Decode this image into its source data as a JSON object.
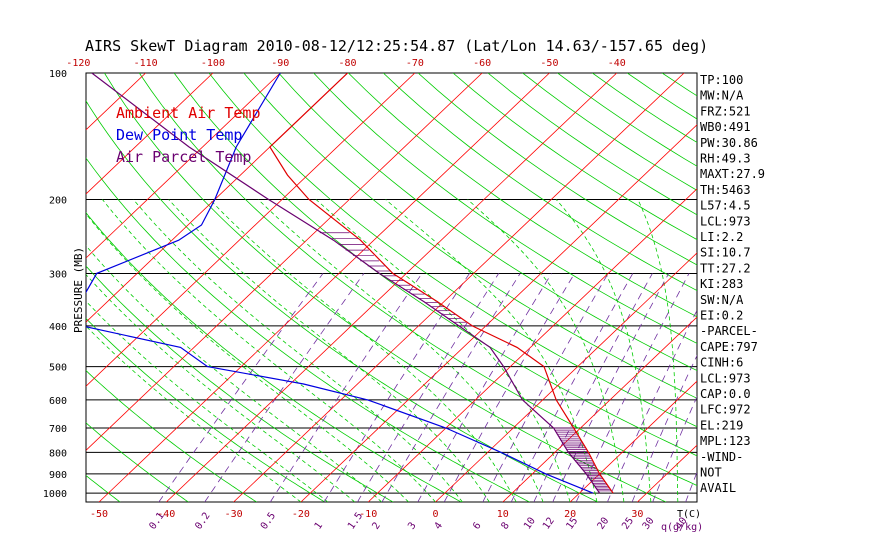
{
  "title": "AIRS SkewT Diagram 2010-08-12/12:25:54.87 (Lat/Lon 14.63/-157.65 deg)",
  "chart_data": {
    "type": "skewt",
    "ylabel": "PRESSURE (MB)",
    "ylim": [
      1050,
      100
    ],
    "y_log": true,
    "pressure_ticks": [
      100,
      200,
      300,
      400,
      500,
      600,
      700,
      800,
      900,
      1000
    ],
    "isobars": [
      200,
      300,
      400,
      500,
      600,
      700,
      800,
      900,
      1000
    ],
    "temp_ticks_bottom": [
      -50,
      -40,
      -30,
      -20,
      -10,
      0,
      10,
      20,
      30
    ],
    "temp_ticks_top": [
      -120,
      -110,
      -100,
      -90,
      -80,
      -70,
      -60,
      -50,
      -40
    ],
    "temp_unit_label": "T(C)",
    "mixing_ratio_ticks": [
      "0.1",
      "0.2",
      "0.5",
      "1",
      "1.5",
      "2",
      "3",
      "4",
      "6",
      "8",
      "10",
      "12",
      "15",
      "20",
      "25",
      "30",
      "40"
    ],
    "mixing_ratio_unit_label": "q(g/kg)",
    "series": [
      {
        "name": "Ambient Air Temp",
        "color": "#ff0000",
        "points": [
          [
            100,
            -80
          ],
          [
            150,
            -80
          ],
          [
            175,
            -73
          ],
          [
            200,
            -66
          ],
          [
            250,
            -52
          ],
          [
            300,
            -42
          ],
          [
            350,
            -31
          ],
          [
            400,
            -22
          ],
          [
            450,
            -12
          ],
          [
            500,
            -5
          ],
          [
            600,
            2
          ],
          [
            700,
            9
          ],
          [
            800,
            15
          ],
          [
            900,
            20
          ],
          [
            1000,
            25
          ]
        ]
      },
      {
        "name": "Dew Point Temp",
        "color": "#0000ff",
        "points": [
          [
            100,
            -90
          ],
          [
            150,
            -85
          ],
          [
            200,
            -80
          ],
          [
            230,
            -78
          ],
          [
            250,
            -79
          ],
          [
            300,
            -86
          ],
          [
            350,
            -84
          ],
          [
            400,
            -80
          ],
          [
            450,
            -62
          ],
          [
            500,
            -55
          ],
          [
            550,
            -38
          ],
          [
            600,
            -26
          ],
          [
            700,
            -10
          ],
          [
            800,
            2
          ],
          [
            900,
            12
          ],
          [
            1000,
            22
          ]
        ]
      },
      {
        "name": "Air Parcel Temp",
        "color": "#800080",
        "points": [
          [
            100,
            -118
          ],
          [
            150,
            -92
          ],
          [
            200,
            -72
          ],
          [
            250,
            -56
          ],
          [
            300,
            -44
          ],
          [
            350,
            -33
          ],
          [
            400,
            -24
          ],
          [
            450,
            -16
          ],
          [
            500,
            -11
          ],
          [
            600,
            -3
          ],
          [
            700,
            6
          ],
          [
            800,
            12
          ],
          [
            900,
            18
          ],
          [
            1000,
            23
          ]
        ]
      }
    ]
  },
  "legend": {
    "ambient": "Ambient Air Temp",
    "dewpoint": "Dew Point Temp",
    "parcel": "Air Parcel Temp"
  },
  "colors": {
    "ambient": "#e00000",
    "dewpoint": "#0000e0",
    "parcel": "#6a0070",
    "isotherm": "#ff0000",
    "dry_adiabat": "#00cc00",
    "moist_adiabat": "#00cc00",
    "mixing_ratio": "#7030a0"
  },
  "stats": [
    "TP:100",
    "MW:N/A",
    "FRZ:521",
    "WB0:491",
    "PW:30.86",
    "RH:49.3",
    "MAXT:27.9",
    "TH:5463",
    "L57:4.5",
    "LCL:973",
    "LI:2.2",
    "SI:10.7",
    "TT:27.2",
    "KI:283",
    "SW:N/A",
    "EI:0.2",
    "-PARCEL-",
    "CAPE:797",
    "CINH:6",
    "LCL:973",
    "CAP:0.0",
    "LFC:972",
    "EL:219",
    "MPL:123",
    "-WIND-",
    "NOT",
    "AVAIL"
  ]
}
